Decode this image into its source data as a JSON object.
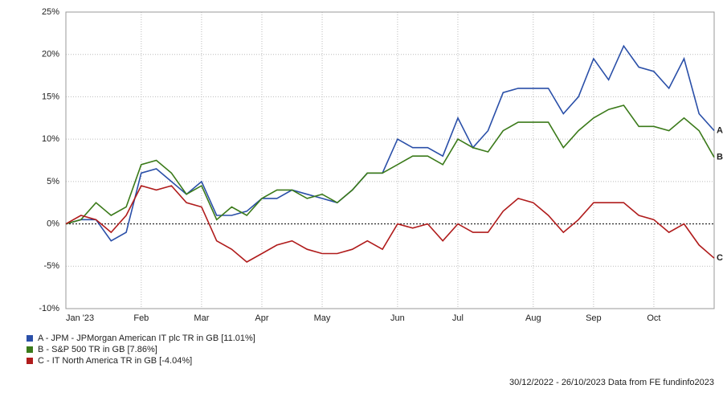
{
  "chart_data": {
    "type": "line",
    "categories": [
      "Jan '23",
      null,
      null,
      null,
      null,
      "Feb",
      null,
      null,
      null,
      "Mar",
      null,
      null,
      null,
      "Apr",
      null,
      null,
      null,
      "May",
      null,
      null,
      null,
      null,
      "Jun",
      null,
      null,
      null,
      "Jul",
      null,
      null,
      null,
      null,
      "Aug",
      null,
      null,
      null,
      "Sep",
      null,
      null,
      null,
      "Oct",
      null,
      null,
      null,
      null
    ],
    "series": [
      {
        "name": "A - JPM - JPMorgan American IT plc TR in GB [11.01%]",
        "end_label": "A",
        "color": "#2a4fa8",
        "values": [
          0,
          0.5,
          0.5,
          -2,
          -1,
          6,
          6.5,
          5,
          3.5,
          5,
          1,
          1,
          1.5,
          3,
          3,
          4,
          3.5,
          3,
          2.5,
          4,
          6,
          6,
          10,
          9,
          9,
          8,
          12.5,
          9,
          11,
          15.5,
          16,
          16,
          16,
          13,
          15,
          19.5,
          17,
          21,
          18.5,
          18,
          16,
          19.5,
          13,
          11.01
        ]
      },
      {
        "name": "B - S&P 500 TR in GB [7.86%]",
        "end_label": "B",
        "color": "#3b7a1a",
        "values": [
          0,
          0.5,
          2.5,
          1,
          2,
          7,
          7.5,
          6,
          3.5,
          4.5,
          0.5,
          2,
          1,
          3,
          4,
          4,
          3,
          3.5,
          2.5,
          4,
          6,
          6,
          7,
          8,
          8,
          7,
          10,
          9,
          8.5,
          11,
          12,
          12,
          12,
          9,
          11,
          12.5,
          13.5,
          14,
          11.5,
          11.5,
          11,
          12.5,
          11,
          7.86
        ]
      },
      {
        "name": "C - IT North America TR in GB [-4.04%]",
        "end_label": "C",
        "color": "#b01c1c",
        "values": [
          0,
          1,
          0.5,
          -1,
          1,
          4.5,
          4,
          4.5,
          2.5,
          2,
          -2,
          -3,
          -4.5,
          -3.5,
          -2.5,
          -2,
          -3,
          -3.5,
          -3.5,
          -3,
          -2,
          -3,
          0,
          -0.5,
          0,
          -2,
          0,
          -1,
          -1,
          1.5,
          3,
          2.5,
          1,
          -1,
          0.5,
          2.5,
          2.5,
          2.5,
          1,
          0.5,
          -1,
          0,
          -2.5,
          -4.04
        ]
      }
    ],
    "ylim": [
      -10,
      25
    ],
    "yticks": [
      {
        "value": -10,
        "label": "-10%"
      },
      {
        "value": -5,
        "label": "-5%"
      },
      {
        "value": 0,
        "label": "0%"
      },
      {
        "value": 5,
        "label": "5%"
      },
      {
        "value": 10,
        "label": "10%"
      },
      {
        "value": 15,
        "label": "15%"
      },
      {
        "value": 20,
        "label": "20%"
      },
      {
        "value": 25,
        "label": "25%"
      }
    ],
    "grid": true,
    "footer": "30/12/2022 - 26/10/2023 Data from FE fundinfo2023"
  }
}
